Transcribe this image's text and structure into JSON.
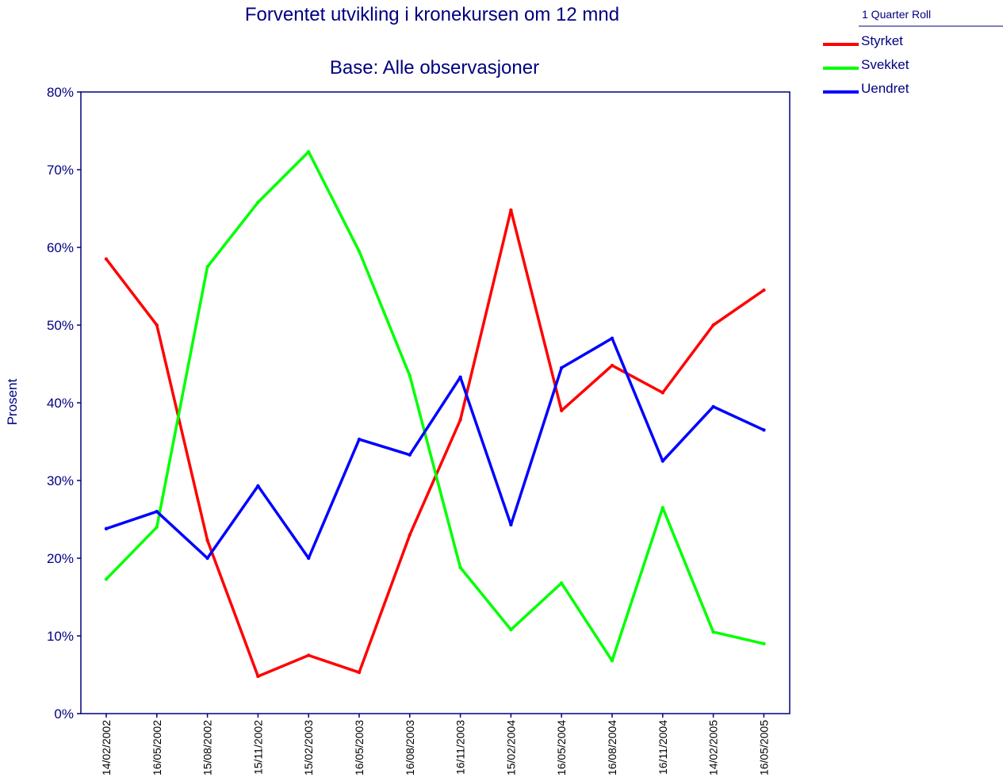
{
  "chart_data": {
    "type": "line",
    "title": "Forventet utvikling i kronekursen om 12 mnd",
    "subtitle": "Base: Alle observasjoner",
    "ylabel": "Prosent",
    "xlabel": "",
    "ylim": [
      0,
      80
    ],
    "yticks": [
      "0%",
      "10%",
      "20%",
      "30%",
      "40%",
      "50%",
      "60%",
      "70%",
      "80%"
    ],
    "grid": false,
    "legend_header": "1 Quarter Roll",
    "legend_position": "top-right",
    "categories": [
      "14/02/2002",
      "16/05/2002",
      "15/08/2002",
      "15/11/2002",
      "15/02/2003",
      "16/05/2003",
      "16/08/2003",
      "16/11/2003",
      "15/02/2004",
      "16/05/2004",
      "16/08/2004",
      "16/11/2004",
      "14/02/2005",
      "16/05/2005"
    ],
    "series": [
      {
        "name": "Styrket",
        "color": "#ff0000",
        "values": [
          58.5,
          50.0,
          22.3,
          4.8,
          7.5,
          5.3,
          23.0,
          37.8,
          64.8,
          39.0,
          44.8,
          41.3,
          50.0,
          54.5
        ]
      },
      {
        "name": "Svekket",
        "color": "#00ff00",
        "values": [
          17.3,
          24.0,
          57.5,
          65.8,
          72.3,
          59.5,
          43.5,
          18.8,
          10.8,
          16.8,
          6.8,
          26.5,
          10.5,
          9.0
        ]
      },
      {
        "name": "Uendret",
        "color": "#0000ff",
        "values": [
          23.8,
          26.0,
          20.0,
          29.3,
          20.0,
          35.3,
          33.3,
          43.3,
          24.3,
          44.5,
          48.3,
          32.5,
          39.5,
          36.5
        ]
      }
    ]
  }
}
